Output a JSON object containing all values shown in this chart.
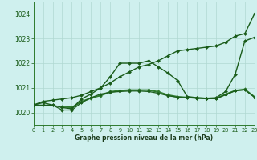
{
  "bg_color": "#cff0ee",
  "grid_color": "#b0d8d2",
  "xlabel": "Graphe pression niveau de la mer (hPa)",
  "xlim": [
    0,
    23
  ],
  "ylim": [
    1019.5,
    1024.5
  ],
  "yticks": [
    1020,
    1021,
    1022,
    1023,
    1024
  ],
  "xticks": [
    0,
    1,
    2,
    3,
    4,
    5,
    6,
    7,
    8,
    9,
    10,
    11,
    12,
    13,
    14,
    15,
    16,
    17,
    18,
    19,
    20,
    21,
    22,
    23
  ],
  "series": [
    {
      "x": [
        0,
        1,
        2,
        3,
        4,
        5,
        6,
        7,
        8,
        9,
        10,
        11,
        12,
        13,
        14,
        15,
        16,
        17,
        18,
        19,
        20,
        21,
        22,
        23
      ],
      "y": [
        1020.3,
        1020.45,
        1020.5,
        1020.55,
        1020.6,
        1020.7,
        1020.85,
        1021.0,
        1021.2,
        1021.45,
        1021.65,
        1021.85,
        1021.95,
        1022.1,
        1022.3,
        1022.5,
        1022.55,
        1022.6,
        1022.65,
        1022.7,
        1022.85,
        1023.1,
        1023.2,
        1024.0
      ],
      "color": "#1a5c1a",
      "marker": "D",
      "markersize": 2.0,
      "linewidth": 1.0,
      "zorder": 4
    },
    {
      "x": [
        0,
        1,
        2,
        3,
        4,
        5,
        6,
        7,
        8,
        9,
        10,
        11,
        12,
        13,
        14,
        15,
        16,
        17,
        18,
        19,
        20,
        21,
        22,
        23
      ],
      "y": [
        1020.3,
        1020.4,
        1020.3,
        1020.2,
        1020.15,
        1020.55,
        1020.75,
        1021.0,
        1021.45,
        1022.0,
        1022.0,
        1022.0,
        1022.1,
        1021.85,
        1021.6,
        1021.3,
        1020.65,
        1020.6,
        1020.58,
        1020.6,
        1020.85,
        1021.55,
        1022.9,
        1023.05
      ],
      "color": "#1a5c1a",
      "marker": "D",
      "markersize": 2.0,
      "linewidth": 1.0,
      "zorder": 3
    },
    {
      "x": [
        3,
        4,
        5,
        6,
        7,
        8,
        9,
        10,
        11,
        12,
        13,
        14,
        15,
        16,
        17,
        18,
        19,
        20,
        21,
        22,
        23
      ],
      "y": [
        1020.25,
        1020.22,
        1020.45,
        1020.6,
        1020.7,
        1020.85,
        1020.9,
        1020.92,
        1020.92,
        1020.92,
        1020.85,
        1020.72,
        1020.65,
        1020.62,
        1020.6,
        1020.58,
        1020.58,
        1020.75,
        1020.9,
        1020.95,
        1020.65
      ],
      "color": "#2d7a2d",
      "marker": "D",
      "markersize": 1.8,
      "linewidth": 0.9,
      "zorder": 2
    },
    {
      "x": [
        3,
        4,
        5,
        6,
        7,
        8,
        9,
        10,
        11,
        12,
        13,
        14,
        15,
        16,
        17,
        18,
        19,
        20,
        21,
        22,
        23
      ],
      "y": [
        1020.22,
        1020.2,
        1020.42,
        1020.58,
        1020.68,
        1020.82,
        1020.88,
        1020.9,
        1020.9,
        1020.9,
        1020.82,
        1020.7,
        1020.62,
        1020.6,
        1020.58,
        1020.56,
        1020.56,
        1020.72,
        1020.88,
        1020.92,
        1020.62
      ],
      "color": "#2d7a2d",
      "marker": "D",
      "markersize": 1.8,
      "linewidth": 0.9,
      "zorder": 2
    },
    {
      "x": [
        0,
        1,
        2,
        3,
        4,
        5,
        6,
        7,
        8,
        9,
        10,
        11,
        12,
        13,
        14,
        15,
        16,
        17,
        18,
        19,
        20,
        21,
        22,
        23
      ],
      "y": [
        1020.3,
        1020.3,
        1020.3,
        1020.1,
        1020.1,
        1020.4,
        1020.6,
        1020.75,
        1020.82,
        1020.85,
        1020.87,
        1020.87,
        1020.85,
        1020.78,
        1020.68,
        1020.62,
        1020.6,
        1020.58,
        1020.56,
        1020.56,
        1020.72,
        1020.88,
        1020.92,
        1020.62
      ],
      "color": "#1a5c1a",
      "marker": "D",
      "markersize": 1.8,
      "linewidth": 0.9,
      "zorder": 2
    }
  ]
}
